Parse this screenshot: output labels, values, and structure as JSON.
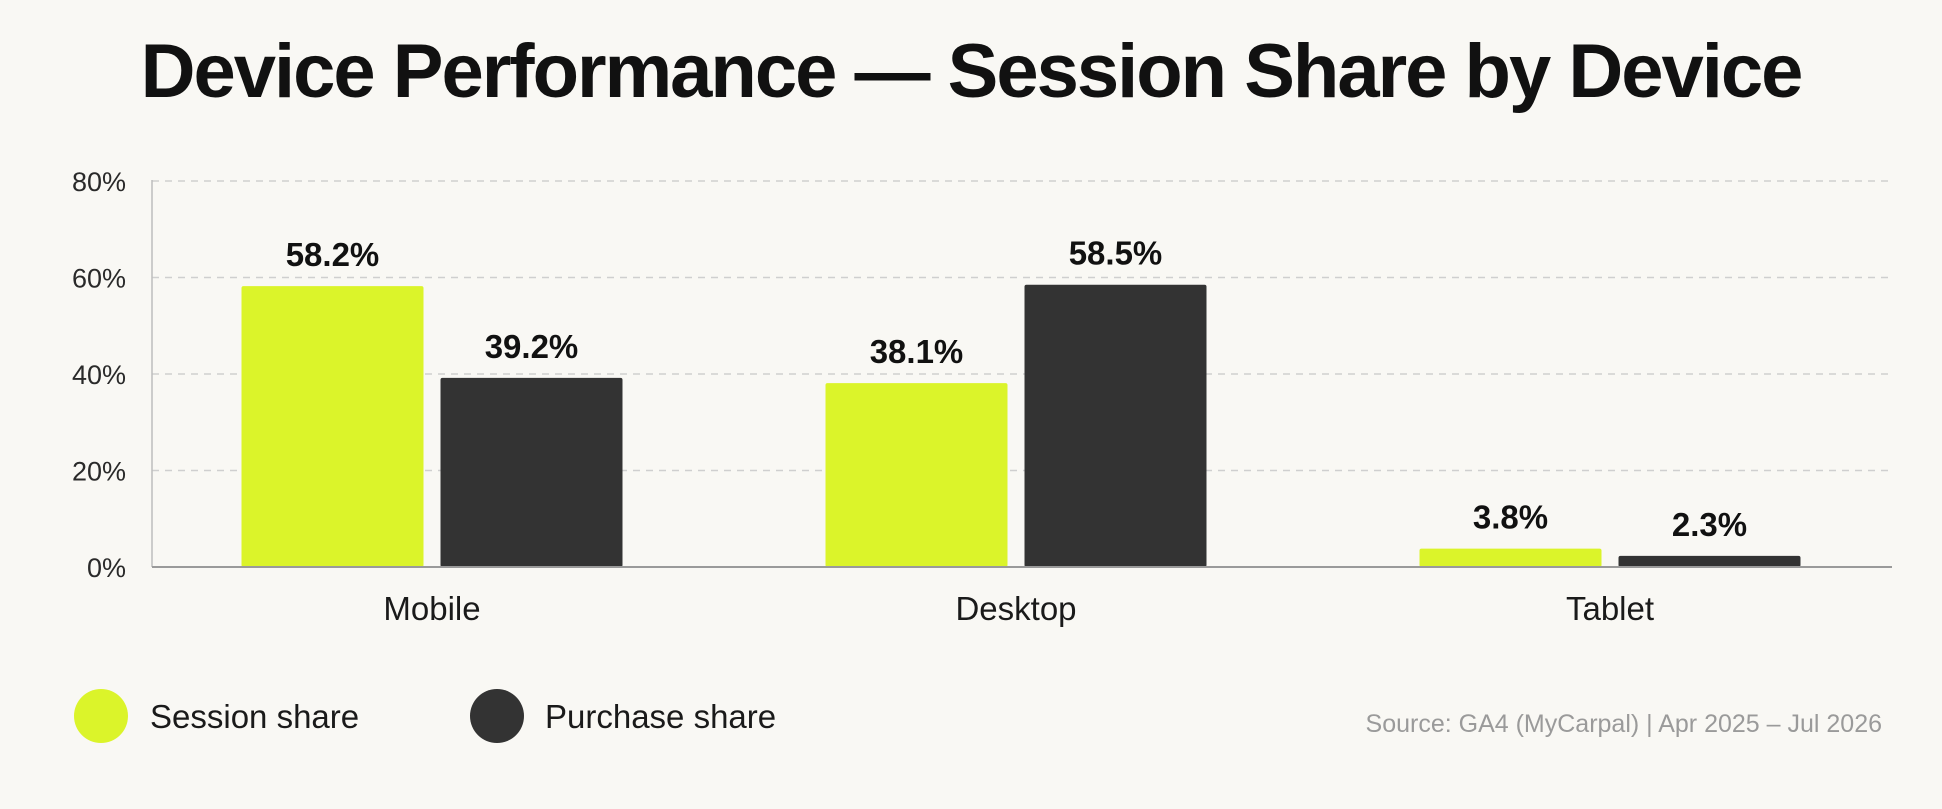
{
  "chart_data": {
    "type": "bar",
    "title": "Device Performance — Session Share by Device",
    "categories": [
      "Mobile",
      "Desktop",
      "Tablet"
    ],
    "series": [
      {
        "name": "Session share",
        "values": [
          58.2,
          38.1,
          3.8
        ],
        "labels": [
          "58.2%",
          "38.1%",
          "3.8%"
        ],
        "color": "#dbf42a"
      },
      {
        "name": "Purchase share",
        "values": [
          39.2,
          58.5,
          2.3
        ],
        "labels": [
          "39.2%",
          "58.5%",
          "2.3%"
        ],
        "color": "#333333"
      }
    ],
    "yticks": [
      {
        "value": 0,
        "label": "0%"
      },
      {
        "value": 20,
        "label": "20%"
      },
      {
        "value": 40,
        "label": "40%"
      },
      {
        "value": 60,
        "label": "60%"
      },
      {
        "value": 80,
        "label": "80%"
      }
    ],
    "ylim": [
      0,
      80
    ],
    "grid": true,
    "legend": "bottom-left",
    "source": "Source: GA4 (MyCarpal) | Apr 2025 – Jul 2026"
  }
}
